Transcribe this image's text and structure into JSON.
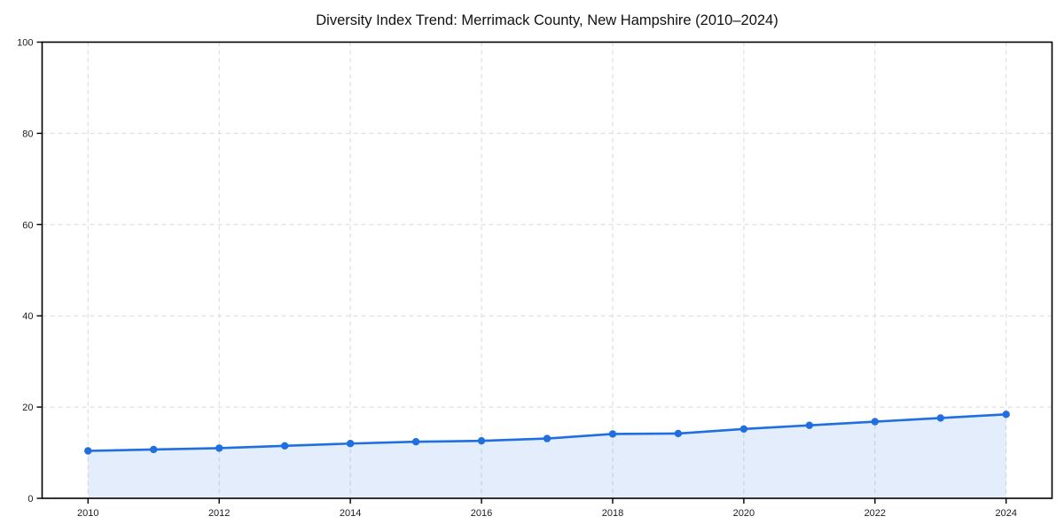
{
  "page": {
    "background": "#ffffff"
  },
  "chart_data": {
    "type": "line",
    "title": "Diversity Index Trend: Merrimack County, New Hampshire (2010–2024)",
    "x": [
      2010,
      2011,
      2012,
      2013,
      2014,
      2015,
      2016,
      2017,
      2018,
      2019,
      2020,
      2021,
      2022,
      2023,
      2024
    ],
    "series": [
      {
        "name": "Diversity Index",
        "values": [
          10.4,
          10.7,
          11.0,
          11.5,
          12.0,
          12.4,
          12.6,
          13.1,
          14.1,
          14.2,
          15.2,
          16.0,
          16.8,
          17.6,
          18.4
        ]
      }
    ],
    "xlabel": "",
    "ylabel": "",
    "x_tick_labels": [
      "2010",
      "2012",
      "2014",
      "2016",
      "2018",
      "2020",
      "2022",
      "2024"
    ],
    "x_tick_values": [
      2010,
      2012,
      2014,
      2016,
      2018,
      2020,
      2022,
      2024
    ],
    "y_tick_labels": [
      "0",
      "20",
      "40",
      "60",
      "80",
      "100"
    ],
    "y_tick_values": [
      0,
      20,
      40,
      60,
      80,
      100
    ],
    "xlim": [
      2009.3,
      2024.7
    ],
    "ylim": [
      0,
      100
    ],
    "grid": "dashed",
    "legend_position": "none",
    "marker": "circle",
    "area_fill": true,
    "colors": {
      "line": "#1f6fe0",
      "marker": "#1f6fe0",
      "fill": "rgba(31,111,224,0.12)",
      "grid": "#d9d9d9",
      "spine": "#000000",
      "tick_text": "#1c1c1c",
      "title_text": "#111111"
    }
  }
}
